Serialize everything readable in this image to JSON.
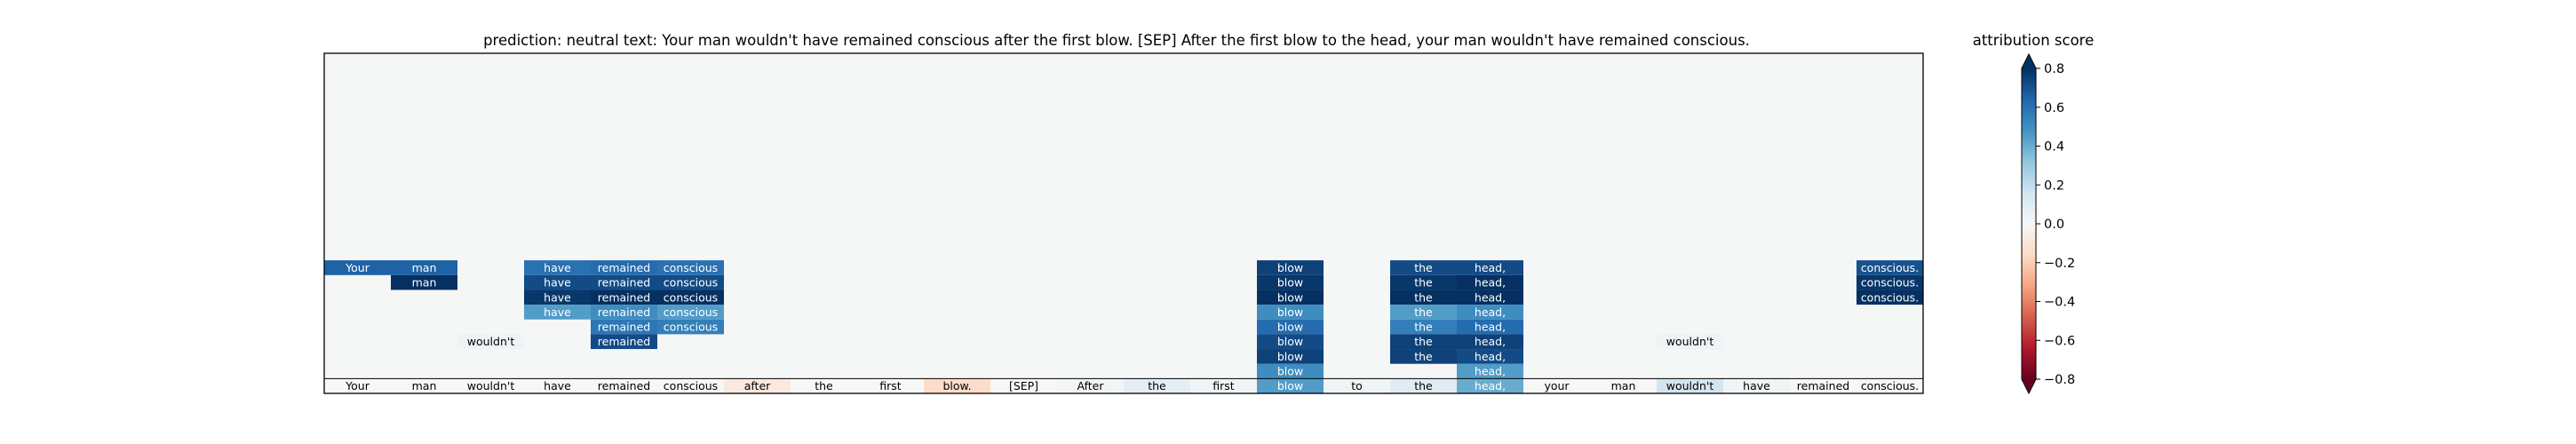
{
  "chart_data": {
    "type": "heatmap",
    "title": "prediction:  neutral     text:  Your man wouldn't have remained conscious after the first blow. [SEP] After the first blow to the head, your man wouldn't have remained conscious.",
    "colorbar": {
      "label": "attribution score",
      "range": [
        -0.8,
        0.8
      ],
      "ticks": [
        0.8,
        0.6,
        0.4,
        0.2,
        0.0,
        -0.2,
        -0.4,
        -0.6,
        -0.8
      ],
      "tick_labels": [
        "0.8",
        "0.6",
        "0.4",
        "0.2",
        "0.0",
        "−0.2",
        "−0.4",
        "−0.6",
        "−0.8"
      ],
      "colormap": "RdBu",
      "extend": "both"
    },
    "tokens": [
      "Your",
      "man",
      "wouldn't",
      "have",
      "remained",
      "conscious",
      "after",
      "the",
      "first",
      "blow.",
      "[SEP]",
      "After",
      "the",
      "first",
      "blow",
      "to",
      "the",
      "head,",
      "your",
      "man",
      "wouldn't",
      "have",
      "remained",
      "conscious."
    ],
    "rows": 23,
    "background_color": "#f5f6f6",
    "cells": [
      {
        "row": 22,
        "col": 0,
        "value": 0.0
      },
      {
        "row": 22,
        "col": 1,
        "value": 0.0
      },
      {
        "row": 22,
        "col": 2,
        "value": 0.0
      },
      {
        "row": 22,
        "col": 3,
        "value": 0.0
      },
      {
        "row": 22,
        "col": 4,
        "value": 0.0
      },
      {
        "row": 22,
        "col": 5,
        "value": 0.0
      },
      {
        "row": 22,
        "col": 6,
        "value": -0.08
      },
      {
        "row": 22,
        "col": 7,
        "value": 0.0
      },
      {
        "row": 22,
        "col": 8,
        "value": 0.0
      },
      {
        "row": 22,
        "col": 9,
        "value": -0.15
      },
      {
        "row": 22,
        "col": 10,
        "value": 0.0
      },
      {
        "row": 22,
        "col": 11,
        "value": 0.02
      },
      {
        "row": 22,
        "col": 12,
        "value": 0.08
      },
      {
        "row": 22,
        "col": 13,
        "value": 0.03
      },
      {
        "row": 22,
        "col": 14,
        "value": 0.45
      },
      {
        "row": 22,
        "col": 15,
        "value": 0.03
      },
      {
        "row": 22,
        "col": 16,
        "value": 0.1
      },
      {
        "row": 22,
        "col": 17,
        "value": 0.4
      },
      {
        "row": 22,
        "col": 18,
        "value": 0.0
      },
      {
        "row": 22,
        "col": 19,
        "value": 0.0
      },
      {
        "row": 22,
        "col": 20,
        "value": 0.15
      },
      {
        "row": 22,
        "col": 21,
        "value": 0.03
      },
      {
        "row": 22,
        "col": 22,
        "value": 0.0
      },
      {
        "row": 22,
        "col": 23,
        "value": 0.0
      },
      {
        "row": 21,
        "col": 14,
        "value": 0.5
      },
      {
        "row": 21,
        "col": 17,
        "value": 0.45
      },
      {
        "row": 19,
        "col": 2,
        "value": 0.04
      },
      {
        "row": 19,
        "col": 20,
        "value": 0.04
      },
      {
        "row": 14,
        "col": 0,
        "value": 0.65
      },
      {
        "row": 14,
        "col": 1,
        "value": 0.65
      },
      {
        "row": 14,
        "col": 3,
        "value": 0.6
      },
      {
        "row": 14,
        "col": 4,
        "value": 0.62
      },
      {
        "row": 14,
        "col": 5,
        "value": 0.6
      },
      {
        "row": 14,
        "col": 14,
        "value": 0.75
      },
      {
        "row": 14,
        "col": 16,
        "value": 0.72
      },
      {
        "row": 14,
        "col": 17,
        "value": 0.72
      },
      {
        "row": 14,
        "col": 23,
        "value": 0.7
      },
      {
        "row": 15,
        "col": 1,
        "value": 0.8
      },
      {
        "row": 15,
        "col": 3,
        "value": 0.72
      },
      {
        "row": 15,
        "col": 4,
        "value": 0.72
      },
      {
        "row": 15,
        "col": 5,
        "value": 0.72
      },
      {
        "row": 15,
        "col": 14,
        "value": 0.78
      },
      {
        "row": 15,
        "col": 16,
        "value": 0.78
      },
      {
        "row": 15,
        "col": 17,
        "value": 0.8
      },
      {
        "row": 15,
        "col": 23,
        "value": 0.78
      },
      {
        "row": 16,
        "col": 3,
        "value": 0.78
      },
      {
        "row": 16,
        "col": 4,
        "value": 0.8
      },
      {
        "row": 16,
        "col": 5,
        "value": 0.8
      },
      {
        "row": 16,
        "col": 14,
        "value": 0.8
      },
      {
        "row": 16,
        "col": 16,
        "value": 0.8
      },
      {
        "row": 16,
        "col": 17,
        "value": 0.8
      },
      {
        "row": 16,
        "col": 23,
        "value": 0.8
      },
      {
        "row": 17,
        "col": 3,
        "value": 0.45
      },
      {
        "row": 17,
        "col": 4,
        "value": 0.5
      },
      {
        "row": 17,
        "col": 5,
        "value": 0.45
      },
      {
        "row": 17,
        "col": 14,
        "value": 0.5
      },
      {
        "row": 17,
        "col": 16,
        "value": 0.45
      },
      {
        "row": 17,
        "col": 17,
        "value": 0.5
      },
      {
        "row": 18,
        "col": 4,
        "value": 0.58
      },
      {
        "row": 18,
        "col": 5,
        "value": 0.55
      },
      {
        "row": 18,
        "col": 14,
        "value": 0.62
      },
      {
        "row": 18,
        "col": 16,
        "value": 0.55
      },
      {
        "row": 18,
        "col": 17,
        "value": 0.62
      },
      {
        "row": 19,
        "col": 4,
        "value": 0.72
      },
      {
        "row": 19,
        "col": 14,
        "value": 0.72
      },
      {
        "row": 19,
        "col": 16,
        "value": 0.75
      },
      {
        "row": 19,
        "col": 17,
        "value": 0.75
      },
      {
        "row": 20,
        "col": 14,
        "value": 0.75
      },
      {
        "row": 20,
        "col": 16,
        "value": 0.75
      },
      {
        "row": 20,
        "col": 17,
        "value": 0.72
      }
    ],
    "grid": false
  }
}
